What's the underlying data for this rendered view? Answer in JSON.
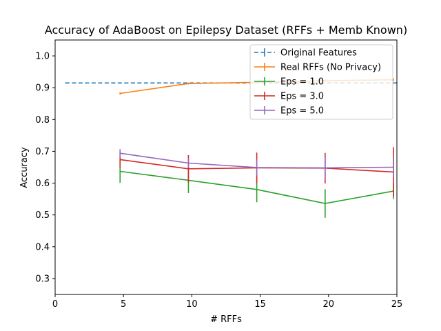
{
  "chart_data": {
    "type": "line",
    "title": "Accuracy of AdaBoost on Epilepsy Dataset (RFFs + Memb Known)",
    "xlabel": "# RFFs",
    "ylabel": "Accuracy",
    "xlim": [
      0,
      25
    ],
    "ylim": [
      0.25,
      1.05
    ],
    "xticks": [
      0,
      5,
      10,
      15,
      20,
      25
    ],
    "yticks": [
      0.3,
      0.4,
      0.5,
      0.6,
      0.7,
      0.8,
      0.9,
      1.0
    ],
    "xtick_labels": [
      "0",
      "5",
      "10",
      "15",
      "20",
      "25"
    ],
    "ytick_labels": [
      "0.3",
      "0.4",
      "0.5",
      "0.6",
      "0.7",
      "0.8",
      "0.9",
      "1.0"
    ],
    "grid": false,
    "legend_position": "top-right",
    "series": [
      {
        "name": "Original Features",
        "color": "#1f77b4",
        "dashed": true,
        "x": [
          0.75,
          25
        ],
        "y": [
          0.915,
          0.915
        ],
        "err": [
          0,
          0
        ]
      },
      {
        "name": "Real RFFs (No Privacy)",
        "color": "#ff7f0e",
        "dashed": false,
        "x": [
          4.75,
          9.75,
          14.75,
          19.75,
          24.75
        ],
        "y": [
          0.882,
          0.913,
          0.917,
          0.922,
          0.925
        ],
        "err": [
          0.004,
          0.003,
          0.003,
          0.003,
          0.004
        ]
      },
      {
        "name": "Eps = 1.0",
        "color": "#2ca02c",
        "dashed": false,
        "x": [
          4.75,
          9.75,
          14.75,
          19.75,
          24.75
        ],
        "y": [
          0.637,
          0.609,
          0.58,
          0.536,
          0.575
        ],
        "err": [
          0.036,
          0.04,
          0.04,
          0.045,
          0.025
        ]
      },
      {
        "name": "Eps = 3.0",
        "color": "#d62728",
        "dashed": false,
        "x": [
          4.75,
          9.75,
          14.75,
          19.75,
          24.75
        ],
        "y": [
          0.674,
          0.645,
          0.648,
          0.647,
          0.635
        ],
        "err": [
          0.025,
          0.043,
          0.048,
          0.048,
          0.078
        ]
      },
      {
        "name": "Eps = 5.0",
        "color": "#9467bd",
        "dashed": false,
        "x": [
          4.75,
          9.75,
          14.75,
          19.75,
          24.75
        ],
        "y": [
          0.694,
          0.663,
          0.649,
          0.648,
          0.65
        ],
        "err": [
          0.013,
          0.015,
          0.025,
          0.035,
          0.032
        ]
      }
    ]
  }
}
